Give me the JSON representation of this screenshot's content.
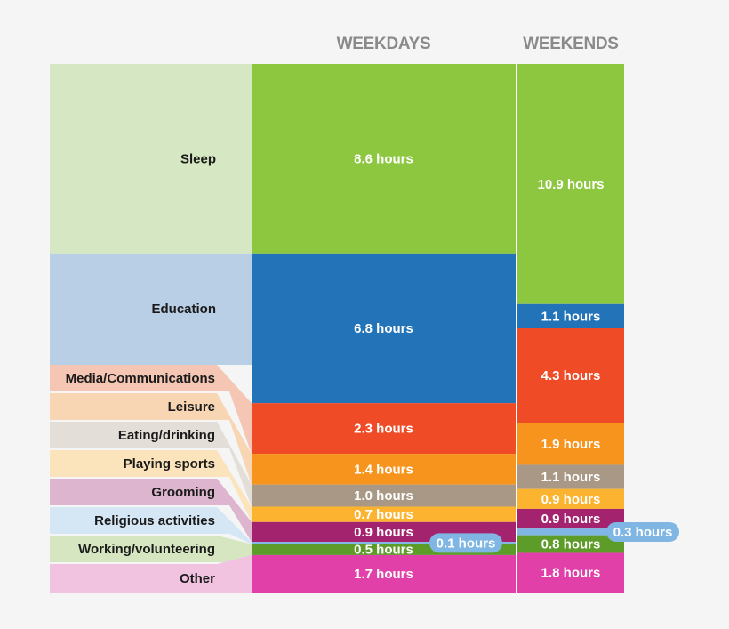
{
  "chart_data": {
    "type": "bar",
    "stacked": true,
    "orientation": "vertical",
    "columns": [
      "WEEKDAYS",
      "WEEKENDS"
    ],
    "unit": "hours",
    "series": [
      {
        "name": "Sleep",
        "values": [
          8.6,
          10.9
        ],
        "color": "#8dc63f",
        "light": "#d6e8c3",
        "labels": [
          "8.6 hours",
          "10.9 hours"
        ]
      },
      {
        "name": "Education",
        "values": [
          6.8,
          1.1
        ],
        "color": "#2373b8",
        "light": "#b8cfe5",
        "labels": [
          "6.8 hours",
          "1.1 hours"
        ]
      },
      {
        "name": "Media/Communications",
        "values": [
          2.3,
          4.3
        ],
        "color": "#ee4b26",
        "light": "#f6c6b5",
        "labels": [
          "2.3 hours",
          "4.3 hours"
        ]
      },
      {
        "name": "Leisure",
        "values": [
          1.4,
          1.9
        ],
        "color": "#f7941d",
        "light": "#f8d6b4",
        "labels": [
          "1.4 hours",
          "1.9 hours"
        ]
      },
      {
        "name": "Eating/drinking",
        "values": [
          1.0,
          1.1
        ],
        "color": "#a89885",
        "light": "#e3ded8",
        "labels": [
          "1.0 hours",
          "1.1 hours"
        ]
      },
      {
        "name": "Playing sports",
        "values": [
          0.7,
          0.9
        ],
        "color": "#fbb330",
        "light": "#fbe4bb",
        "labels": [
          "0.7 hours",
          "0.9 hours"
        ]
      },
      {
        "name": "Grooming",
        "values": [
          0.9,
          0.9
        ],
        "color": "#a3236f",
        "light": "#ddb5cf",
        "labels": [
          "0.9 hours",
          "0.9 hours"
        ]
      },
      {
        "name": "Religious activities",
        "values": [
          0.1,
          0.3
        ],
        "color": "#7fb6e3",
        "light": "#d5e6f5",
        "labels": [
          "0.1 hours",
          "0.3 hours"
        ],
        "callout": true
      },
      {
        "name": "Working/volunteering",
        "values": [
          0.5,
          0.8
        ],
        "color": "#5d9c28",
        "light": "#d5e6c1",
        "labels": [
          "0.5 hours",
          "0.8 hours"
        ]
      },
      {
        "name": "Other",
        "values": [
          1.7,
          1.8
        ],
        "color": "#e040a8",
        "light": "#f1c3e1",
        "labels": [
          "1.7 hours",
          "1.8 hours"
        ]
      }
    ],
    "xlabel": "",
    "ylabel": "",
    "legend": "left"
  }
}
